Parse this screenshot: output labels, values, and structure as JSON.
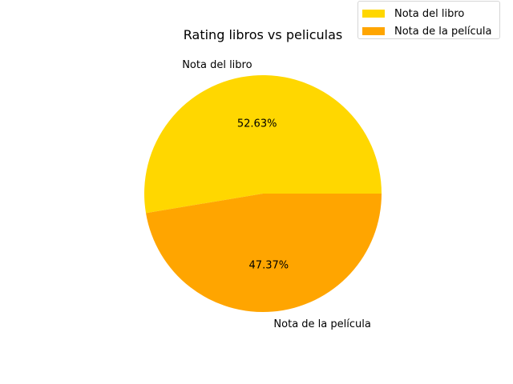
{
  "chart_data": {
    "type": "pie",
    "title": "Rating libros vs peliculas",
    "slices": [
      {
        "label": "Nota del libro",
        "value": 52.63,
        "pct_label": "52.63%",
        "color": "#FFD700"
      },
      {
        "label": "Nota de la película",
        "value": 47.37,
        "pct_label": "47.37%",
        "color": "#FFA500"
      }
    ],
    "start_angle_deg": 0,
    "direction": "counterclockwise",
    "legend_position": "top-right"
  }
}
